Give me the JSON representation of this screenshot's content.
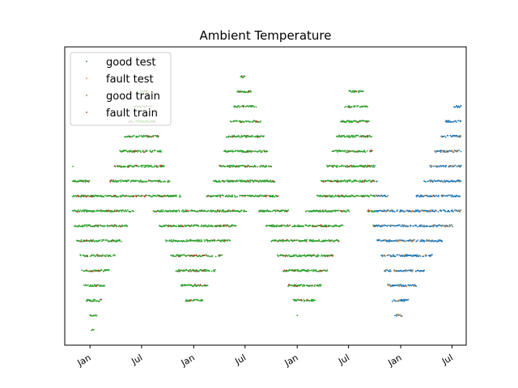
{
  "chart_data": {
    "type": "scatter",
    "title": "Ambient Temperature",
    "xlabel": "",
    "ylabel": "",
    "x_axis": {
      "type": "date",
      "range": [
        "2015-10-04",
        "2019-08-20"
      ],
      "ticks": [
        {
          "date": "2016-01-01",
          "label": "Jan"
        },
        {
          "date": "2016-07-01",
          "label": "Jul"
        },
        {
          "date": "2017-01-01",
          "label": "Jan"
        },
        {
          "date": "2017-07-01",
          "label": "Jul"
        },
        {
          "date": "2018-01-01",
          "label": "Jan"
        },
        {
          "date": "2018-07-01",
          "label": "Jul"
        },
        {
          "date": "2019-01-01",
          "label": "Jan"
        },
        {
          "date": "2019-07-01",
          "label": "Jul"
        }
      ]
    },
    "y_axis": {
      "ticks_visible": false,
      "range": [
        0,
        1
      ]
    },
    "grid": false,
    "legend": {
      "placement": "top-left"
    },
    "series": [
      {
        "name": "good test",
        "color": "#1f77b4",
        "span": [
          "2018-10-01",
          "2019-08-01"
        ],
        "density": 0.75,
        "line_color": "#2f7fb8"
      },
      {
        "name": "fault test",
        "color": "#ff7f0e",
        "span": [
          "2018-10-01",
          "2019-08-01"
        ],
        "density": 0.08,
        "line_color": "#e69550"
      },
      {
        "name": "good train",
        "color": "#2ca02c",
        "span": [
          "2015-11-01",
          "2018-10-01"
        ],
        "density": 0.8,
        "line_color": "#2f8f2f"
      },
      {
        "name": "fault train",
        "color": "#d62728",
        "span": [
          "2015-11-01",
          "2018-10-01"
        ],
        "density": 0.06,
        "line_color": "#cf4a4a"
      }
    ],
    "seasonal_profile": {
      "description_points": [
        {
          "date": "2015-11-01",
          "top": 0.58,
          "bottom": 0.45
        },
        {
          "date": "2016-01-10",
          "top": 0.52,
          "bottom": 0.04
        },
        {
          "date": "2016-03-01",
          "top": 0.5,
          "bottom": 0.25
        },
        {
          "date": "2016-06-15",
          "top": 0.82,
          "bottom": 0.5
        },
        {
          "date": "2016-07-20",
          "top": 0.85,
          "bottom": 0.52
        },
        {
          "date": "2016-10-01",
          "top": 0.54,
          "bottom": 0.35
        },
        {
          "date": "2016-12-15",
          "top": 0.44,
          "bottom": 0.13
        },
        {
          "date": "2017-01-20",
          "top": 0.43,
          "bottom": 0.14
        },
        {
          "date": "2017-04-01",
          "top": 0.58,
          "bottom": 0.3
        },
        {
          "date": "2017-06-20",
          "top": 0.9,
          "bottom": 0.45
        },
        {
          "date": "2017-08-01",
          "top": 0.82,
          "bottom": 0.5
        },
        {
          "date": "2017-11-01",
          "top": 0.46,
          "bottom": 0.3
        },
        {
          "date": "2018-01-01",
          "top": 0.4,
          "bottom": 0.12
        },
        {
          "date": "2018-02-20",
          "top": 0.45,
          "bottom": 0.14
        },
        {
          "date": "2018-05-01",
          "top": 0.62,
          "bottom": 0.3
        },
        {
          "date": "2018-07-15",
          "top": 0.88,
          "bottom": 0.5
        },
        {
          "date": "2018-09-01",
          "top": 0.82,
          "bottom": 0.48
        },
        {
          "date": "2018-10-15",
          "top": 0.5,
          "bottom": 0.35
        },
        {
          "date": "2018-12-20",
          "top": 0.46,
          "bottom": 0.08
        },
        {
          "date": "2019-02-01",
          "top": 0.44,
          "bottom": 0.18
        },
        {
          "date": "2019-04-01",
          "top": 0.55,
          "bottom": 0.28
        },
        {
          "date": "2019-06-15",
          "top": 0.75,
          "bottom": 0.4
        },
        {
          "date": "2019-08-01",
          "top": 0.82,
          "bottom": 0.45
        }
      ]
    }
  }
}
